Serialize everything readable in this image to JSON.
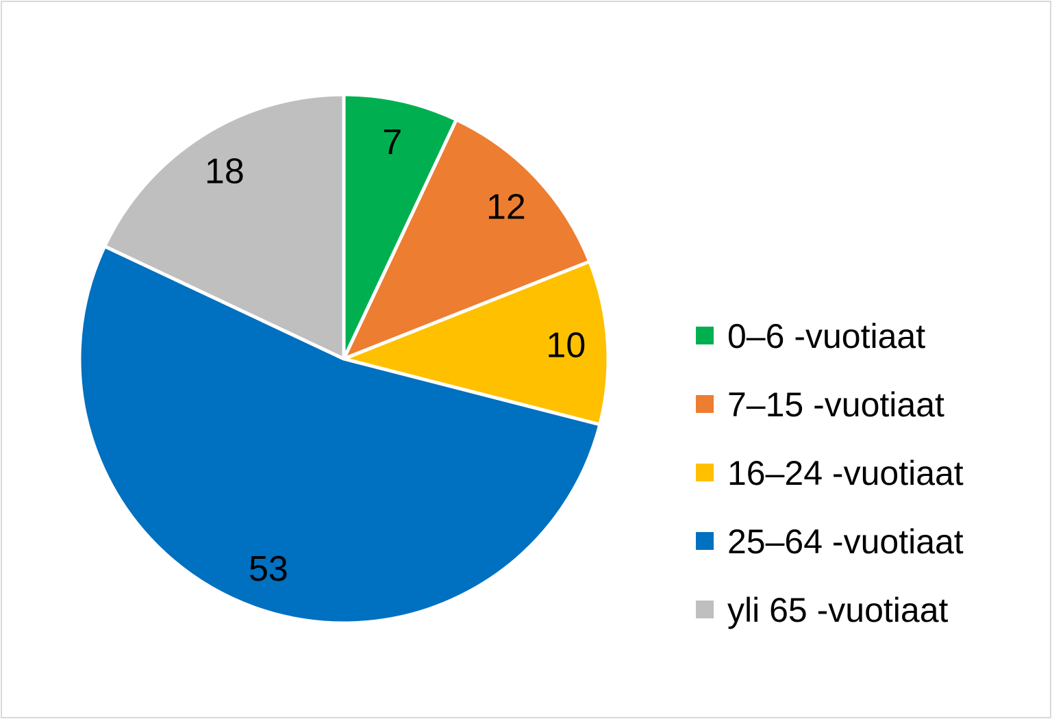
{
  "chart_data": {
    "type": "pie",
    "categories": [
      "0–6 -vuotiaat",
      "7–15 -vuotiaat",
      "16–24 -vuotiaat",
      "25–64 -vuotiaat",
      "yli 65 -vuotiaat"
    ],
    "values": [
      7,
      12,
      10,
      53,
      18
    ],
    "data_labels": [
      "7",
      "12",
      "10",
      "53",
      "18"
    ],
    "colors": [
      "#00B050",
      "#ED7D31",
      "#FFC000",
      "#0070C0",
      "#BFBFBF"
    ],
    "start_angle": "top (12 o'clock)",
    "direction": "clockwise",
    "legend_placement": "right"
  }
}
